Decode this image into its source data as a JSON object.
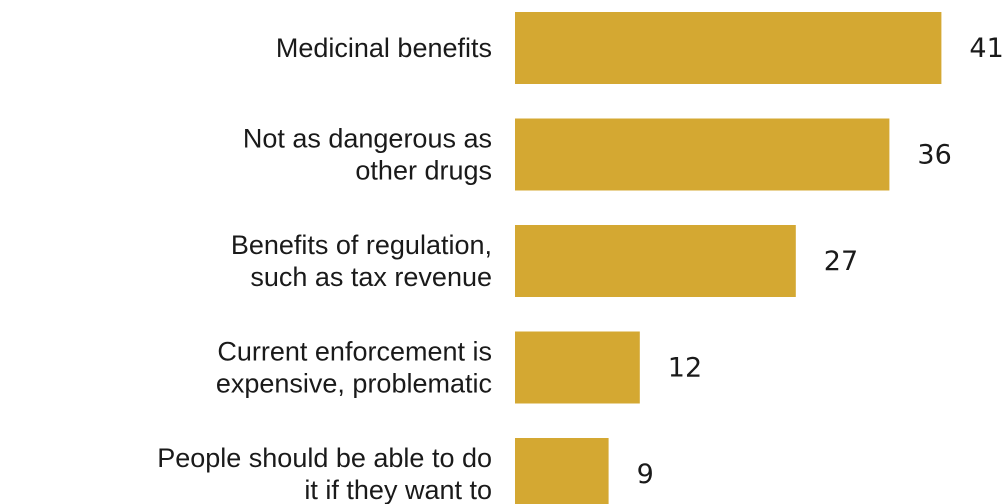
{
  "chart_data": {
    "type": "bar",
    "orientation": "horizontal",
    "categories": [
      [
        "Medicinal benefits"
      ],
      [
        "Not as dangerous as",
        "other drugs"
      ],
      [
        "Benefits of regulation,",
        "such as tax revenue"
      ],
      [
        "Current enforcement is",
        "expensive, problematic"
      ],
      [
        "People should be able to do",
        "it if they want to"
      ]
    ],
    "values": [
      41,
      36,
      27,
      12,
      9
    ],
    "value_labels": [
      "41",
      "36",
      "27",
      "12",
      "9"
    ],
    "bar_color": "#d4a832",
    "title": "",
    "xlabel": "",
    "ylabel": "",
    "grid": false,
    "legend": "none"
  }
}
